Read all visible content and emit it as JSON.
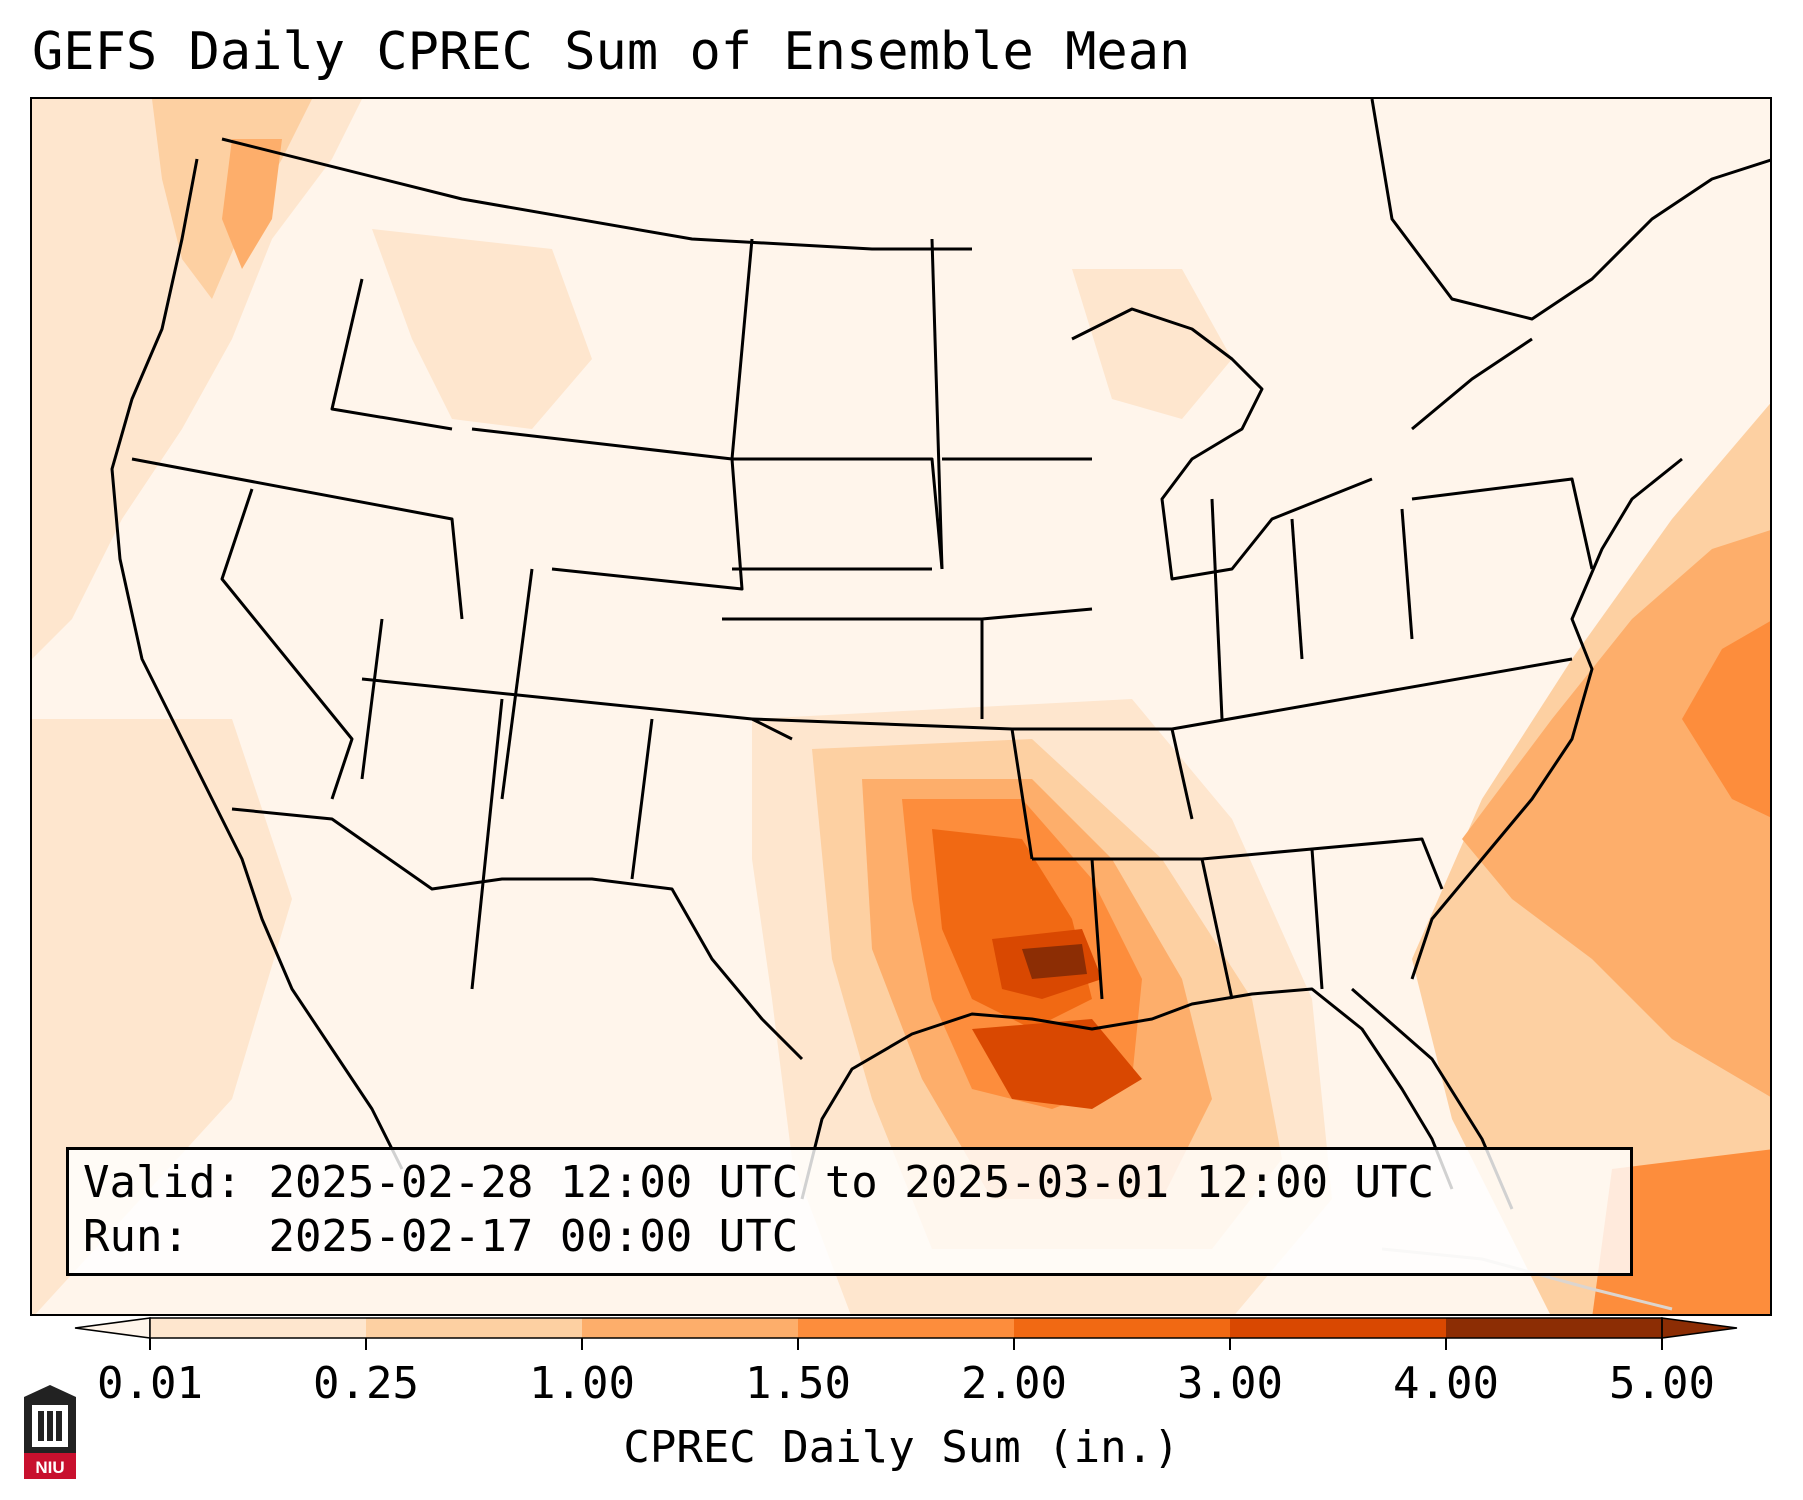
{
  "title": "GEFS Daily CPREC Sum of Ensemble Mean",
  "info": {
    "valid_label": "Valid:",
    "valid_value": "2025-02-28 12:00 UTC to 2025-03-01 12:00 UTC",
    "run_label": "Run:",
    "run_value": "2025-02-17 00:00 UTC"
  },
  "colorbar": {
    "label": "CPREC Daily Sum (in.)",
    "ticks": [
      "0.01",
      "0.25",
      "1.00",
      "1.50",
      "2.00",
      "3.00",
      "4.00",
      "5.00"
    ],
    "colors": [
      "#fff5eb",
      "#fee6ce",
      "#fdd0a2",
      "#fdae6b",
      "#fd8d3c",
      "#f16913",
      "#d94801",
      "#8c2d04"
    ],
    "extend": "both"
  },
  "logo": {
    "text": "NIU"
  }
}
